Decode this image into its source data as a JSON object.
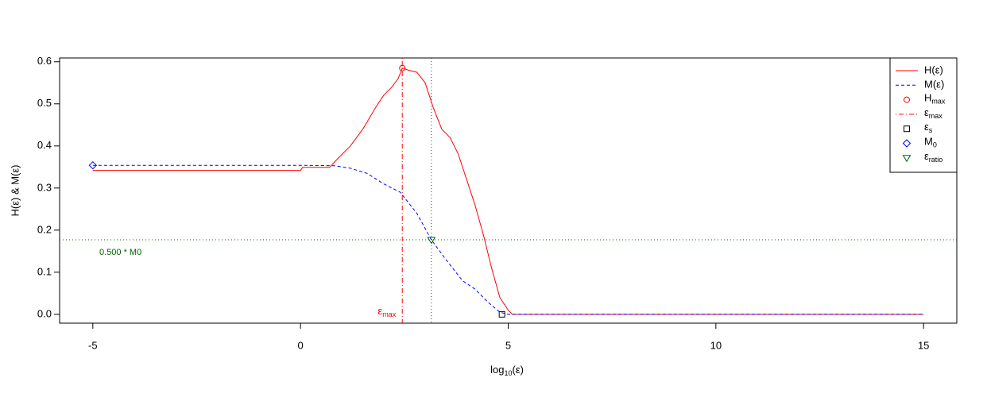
{
  "chart_data": {
    "type": "line",
    "xlabel": {
      "base": "log",
      "sub": "10",
      "rest": "(ε)"
    },
    "ylabel": "H(ε)  &  M(ε)",
    "xlim": [
      -5.8,
      15.8
    ],
    "ylim": [
      -0.021,
      0.609
    ],
    "xticks": [
      -5,
      0,
      5,
      10,
      15
    ],
    "yticks": [
      {
        "value": 0,
        "label": "0.0"
      },
      {
        "value": 0.1,
        "label": "0.1"
      },
      {
        "value": 0.2,
        "label": "0.2"
      },
      {
        "value": 0.3,
        "label": "0.3"
      },
      {
        "value": 0.4,
        "label": "0.4"
      },
      {
        "value": 0.5,
        "label": "0.5"
      },
      {
        "value": 0.6,
        "label": "0.6"
      }
    ],
    "series": [
      {
        "name": "H(ε)",
        "color": "#ff0000",
        "dash": "solid",
        "x": [
          -5,
          0,
          0.05,
          0.7,
          0.8,
          1.0,
          1.2,
          1.5,
          1.8,
          2.0,
          2.2,
          2.35,
          2.45,
          2.6,
          2.8,
          3.0,
          3.2,
          3.4,
          3.6,
          3.8,
          4.0,
          4.2,
          4.4,
          4.6,
          4.8,
          5.0,
          5.1,
          15
        ],
        "values": [
          0.342,
          0.342,
          0.349,
          0.349,
          0.36,
          0.38,
          0.4,
          0.44,
          0.49,
          0.52,
          0.54,
          0.56,
          0.585,
          0.58,
          0.575,
          0.55,
          0.49,
          0.44,
          0.42,
          0.38,
          0.32,
          0.26,
          0.19,
          0.11,
          0.04,
          0.01,
          0,
          0
        ]
      },
      {
        "name": "M(ε)",
        "color": "#0000ff",
        "dash": "dashed",
        "x": [
          -5,
          0,
          0.8,
          1.2,
          1.6,
          2.0,
          2.4,
          2.8,
          3.15,
          3.5,
          3.9,
          4.2,
          4.5,
          4.8,
          5.0,
          15
        ],
        "values": [
          0.354,
          0.354,
          0.353,
          0.347,
          0.335,
          0.31,
          0.29,
          0.24,
          0.177,
          0.13,
          0.08,
          0.06,
          0.03,
          0.005,
          0,
          0
        ]
      }
    ],
    "points": [
      {
        "name": "H",
        "sub": "max",
        "shape": "circle",
        "color": "#ff0000",
        "x": 2.45,
        "y": 0.585
      },
      {
        "name": "ε",
        "sub": "s",
        "shape": "square",
        "color": "#000000",
        "x": 4.85,
        "y": 0
      },
      {
        "name": "M",
        "sub": "0",
        "shape": "diamond",
        "color": "#0000ff",
        "x": -5,
        "y": 0.354
      },
      {
        "name": "ε",
        "sub": "ratio",
        "shape": "triangle",
        "color": "#006400",
        "x": 3.15,
        "y": 0.177
      }
    ],
    "vlines": [
      {
        "name": "ε",
        "sub": "max",
        "color": "#ff0000",
        "dash": "dotdash",
        "x": 2.45
      },
      {
        "color": "#006400",
        "dash": "dotted",
        "x": 3.15
      }
    ],
    "hlines": [
      {
        "color": "#006400",
        "dash": "dotted",
        "y": 0.177
      }
    ],
    "annotations": [
      {
        "text": "0.500 * M0",
        "color": "#006400"
      },
      {
        "text": "ε",
        "sub": "max",
        "color": "#ff0000"
      }
    ]
  }
}
